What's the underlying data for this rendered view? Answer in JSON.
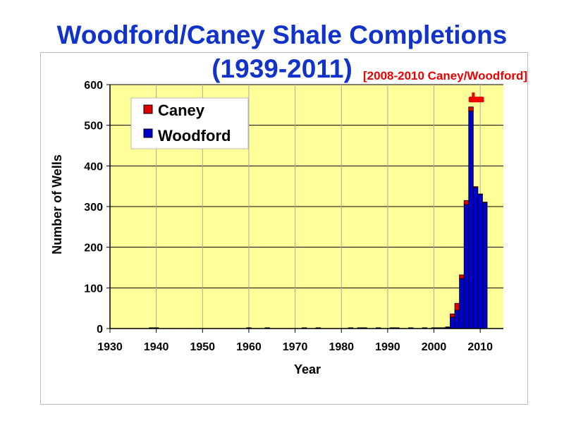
{
  "title_line1": "Woodford/Caney Shale Completions",
  "title_line2": "(1939-2011)",
  "colors": {
    "title": "#1133cc",
    "plot_bg": "#ffff99",
    "caney": "#dd0000",
    "woodford": "#0000cc",
    "annotation": "#ee0000"
  },
  "chart_data": {
    "type": "bar",
    "stacked": true,
    "xlabel": "Year",
    "ylabel": "Number of Wells",
    "xlim": [
      1930,
      2015
    ],
    "ylim": [
      0,
      600
    ],
    "x_ticks": [
      1930,
      1940,
      1950,
      1960,
      1970,
      1980,
      1990,
      2000,
      2010
    ],
    "y_ticks": [
      0,
      100,
      200,
      300,
      400,
      500,
      600
    ],
    "grid": true,
    "legend": {
      "position": "top-left",
      "entries": [
        "Caney",
        "Woodford"
      ]
    },
    "annotation": {
      "text": "[2008-2010 Caney/Woodford]",
      "x_start": 2008,
      "x_end": 2010,
      "y": 565
    },
    "x": [
      1939,
      1940,
      1960,
      1964,
      1972,
      1975,
      1982,
      1984,
      1985,
      1988,
      1991,
      1992,
      1995,
      1998,
      2000,
      2001,
      2002,
      2003,
      2004,
      2005,
      2006,
      2007,
      2008,
      2009,
      2010,
      2011
    ],
    "series": [
      {
        "name": "Caney",
        "values": [
          1,
          1,
          0,
          0,
          1,
          1,
          0,
          1,
          1,
          0,
          1,
          1,
          0,
          0,
          0,
          1,
          1,
          1,
          8,
          17,
          9,
          10,
          10,
          2,
          1,
          1
        ]
      },
      {
        "name": "Woodford",
        "values": [
          1,
          1,
          2,
          2,
          1,
          1,
          2,
          1,
          1,
          2,
          1,
          1,
          2,
          2,
          2,
          1,
          1,
          3,
          28,
          45,
          123,
          305,
          535,
          347,
          330,
          310
        ]
      }
    ]
  }
}
